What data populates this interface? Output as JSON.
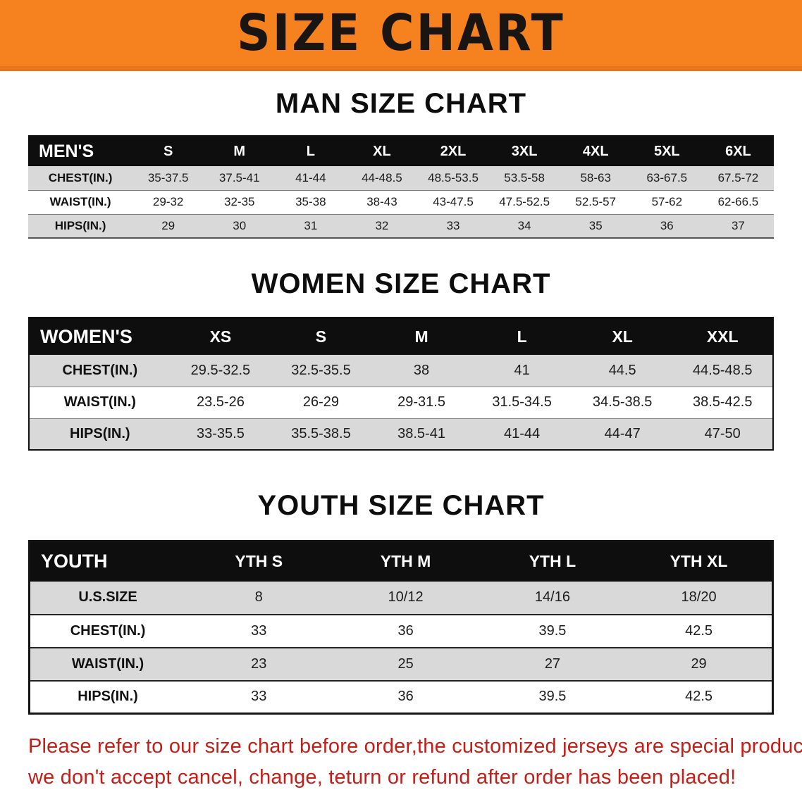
{
  "banner": {
    "title": "SIZE CHART"
  },
  "sections": [
    {
      "id": "men",
      "heading": "MAN SIZE CHART",
      "table": {
        "header": [
          "MEN'S",
          "S",
          "M",
          "L",
          "XL",
          "2XL",
          "3XL",
          "4XL",
          "5XL",
          "6XL"
        ],
        "rows": [
          [
            "CHEST(IN.)",
            "35-37.5",
            "37.5-41",
            "41-44",
            "44-48.5",
            "48.5-53.5",
            "53.5-58",
            "58-63",
            "63-67.5",
            "67.5-72"
          ],
          [
            "WAIST(IN.)",
            "29-32",
            "32-35",
            "35-38",
            "38-43",
            "43-47.5",
            "47.5-52.5",
            "52.5-57",
            "57-62",
            "62-66.5"
          ],
          [
            "HIPS(IN.)",
            "29",
            "30",
            "31",
            "32",
            "33",
            "34",
            "35",
            "36",
            "37"
          ]
        ]
      }
    },
    {
      "id": "women",
      "heading": "WOMEN SIZE CHART",
      "table": {
        "header": [
          "WOMEN'S",
          "XS",
          "S",
          "M",
          "L",
          "XL",
          "XXL"
        ],
        "rows": [
          [
            "CHEST(IN.)",
            "29.5-32.5",
            "32.5-35.5",
            "38",
            "41",
            "44.5",
            "44.5-48.5"
          ],
          [
            "WAIST(IN.)",
            "23.5-26",
            "26-29",
            "29-31.5",
            "31.5-34.5",
            "34.5-38.5",
            "38.5-42.5"
          ],
          [
            "HIPS(IN.)",
            "33-35.5",
            "35.5-38.5",
            "38.5-41",
            "41-44",
            "44-47",
            "47-50"
          ]
        ]
      }
    },
    {
      "id": "youth",
      "heading": "YOUTH SIZE CHART",
      "table": {
        "header": [
          "YOUTH",
          "YTH S",
          "YTH M",
          "YTH L",
          "YTH XL"
        ],
        "rows": [
          [
            "U.S.SIZE",
            "8",
            "10/12",
            "14/16",
            "18/20"
          ],
          [
            "CHEST(IN.)",
            "33",
            "36",
            "39.5",
            "42.5"
          ],
          [
            "WAIST(IN.)",
            "23",
            "25",
            "27",
            "29"
          ],
          [
            "HIPS(IN.)",
            "33",
            "36",
            "39.5",
            "42.5"
          ]
        ]
      }
    }
  ],
  "disclaimer": {
    "line1": "Please refer to our size chart before order,the customized jerseys are special products,",
    "line2": "we don't accept cancel, change, teturn or refund after order has been placed!"
  },
  "colors": {
    "banner_bg": "#f5821f",
    "table_header_bg": "#0e0e0e",
    "row_alt_bg": "#d9d9d9",
    "disclaimer_red": "#c61d17"
  }
}
